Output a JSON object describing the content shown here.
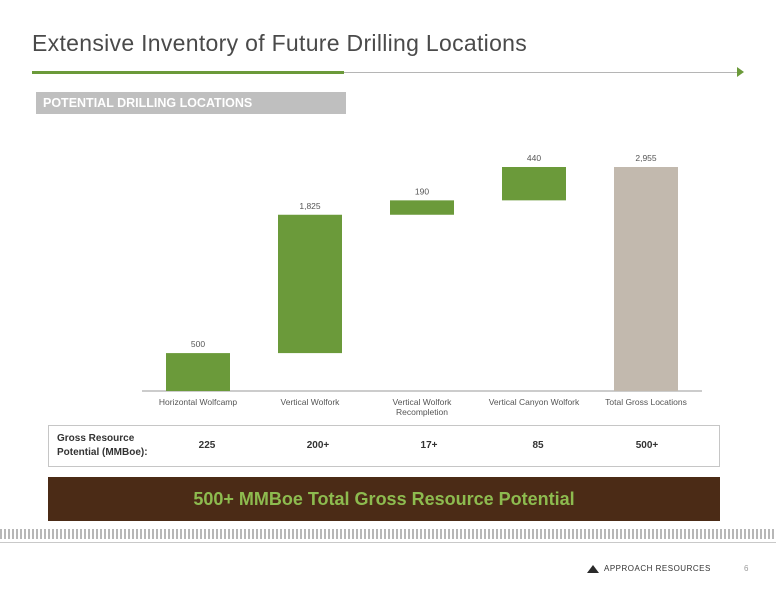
{
  "slide": {
    "title": "Extensive Inventory of Future Drilling Locations",
    "section_label": "POTENTIAL DRILLING LOCATIONS",
    "banner_text": "500+ MMBoe Total Gross Resource Potential",
    "footer_company": "APPROACH RESOURCES",
    "page_number": "6"
  },
  "resource_table": {
    "label": "Gross Resource Potential (MMBoe):",
    "values": [
      "225",
      "200+",
      "17+",
      "85",
      "500+"
    ]
  },
  "colors": {
    "bar_green": "#6b9a3a",
    "total_bar": "#c2b9ae",
    "banner_bg": "#4b2b16",
    "banner_text": "#8dbb4f"
  },
  "chart_data": {
    "type": "bar",
    "subtype": "waterfall",
    "categories": [
      "Horizontal Wolfcamp",
      "Vertical Wolfork",
      "Vertical Wolfork Recompletion",
      "Vertical Canyon Wolfork",
      "Total Gross Locations"
    ],
    "values": [
      500,
      1825,
      190,
      440,
      2955
    ],
    "value_labels": [
      "500",
      "1,825",
      "190",
      "440",
      "2,955"
    ],
    "bar_ranges": [
      [
        0,
        500
      ],
      [
        500,
        2325
      ],
      [
        2325,
        2515
      ],
      [
        2515,
        2955
      ],
      [
        0,
        2955
      ]
    ],
    "is_total": [
      false,
      false,
      false,
      false,
      true
    ],
    "ylim": [
      0,
      2955
    ],
    "grid": false,
    "title": "",
    "xlabel": "",
    "ylabel": ""
  }
}
